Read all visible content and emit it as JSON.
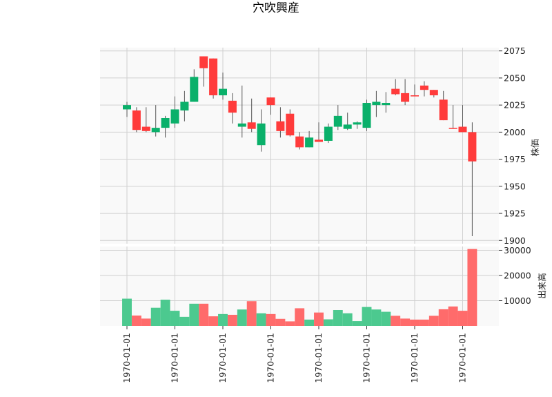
{
  "chart_data": [
    {
      "type": "candlestick",
      "title": "穴吹興産",
      "ylabel": "株価",
      "ylim": [
        1897,
        2078
      ],
      "yticks": [
        1900,
        1925,
        1950,
        1975,
        2000,
        2025,
        2050,
        2075
      ],
      "xtick_labels": [
        "1970-01-01",
        "1970-01-01",
        "1970-01-01",
        "1970-01-01",
        "1970-01-01",
        "1970-01-01",
        "1970-01-01",
        "1970-01-01"
      ],
      "grid": true,
      "colors": {
        "up": "#0ab06a",
        "down": "#ff3b3b",
        "wick": "#555555"
      },
      "candles": [
        {
          "open": 2021,
          "high": 2028,
          "low": 2014,
          "close": 2025
        },
        {
          "open": 2020,
          "high": 2023,
          "low": 2000,
          "close": 2002
        },
        {
          "open": 2005,
          "high": 2023,
          "low": 2000,
          "close": 2001
        },
        {
          "open": 2000,
          "high": 2025,
          "low": 1996,
          "close": 2004
        },
        {
          "open": 2004,
          "high": 2015,
          "low": 1995,
          "close": 2013
        },
        {
          "open": 2008,
          "high": 2033,
          "low": 2004,
          "close": 2021
        },
        {
          "open": 2020,
          "high": 2038,
          "low": 2010,
          "close": 2028
        },
        {
          "open": 2028,
          "high": 2058,
          "low": 2028,
          "close": 2051
        },
        {
          "open": 2070,
          "high": 2070,
          "low": 2042,
          "close": 2059
        },
        {
          "open": 2068,
          "high": 2068,
          "low": 2031,
          "close": 2034
        },
        {
          "open": 2034,
          "high": 2055,
          "low": 2030,
          "close": 2040
        },
        {
          "open": 2029,
          "high": 2036,
          "low": 2008,
          "close": 2018
        },
        {
          "open": 2005,
          "high": 2043,
          "low": 1995,
          "close": 2008
        },
        {
          "open": 2009,
          "high": 2031,
          "low": 2000,
          "close": 2003
        },
        {
          "open": 1988,
          "high": 2021,
          "low": 1982,
          "close": 2008
        },
        {
          "open": 2032,
          "high": 2032,
          "low": 2016,
          "close": 2025
        },
        {
          "open": 2010,
          "high": 2023,
          "low": 1995,
          "close": 2001
        },
        {
          "open": 2017,
          "high": 2021,
          "low": 1996,
          "close": 1997
        },
        {
          "open": 1996,
          "high": 2000,
          "low": 1984,
          "close": 1986
        },
        {
          "open": 1986,
          "high": 2001,
          "low": 1986,
          "close": 1995
        },
        {
          "open": 1993,
          "high": 2009,
          "low": 1991,
          "close": 1991
        },
        {
          "open": 1992,
          "high": 2008,
          "low": 1990,
          "close": 2005
        },
        {
          "open": 2005,
          "high": 2025,
          "low": 2002,
          "close": 2015
        },
        {
          "open": 2003,
          "high": 2018,
          "low": 2002,
          "close": 2007
        },
        {
          "open": 2007,
          "high": 2010,
          "low": 2003,
          "close": 2009
        },
        {
          "open": 2004,
          "high": 2030,
          "low": 2001,
          "close": 2027
        },
        {
          "open": 2025,
          "high": 2038,
          "low": 2014,
          "close": 2028
        },
        {
          "open": 2025,
          "high": 2037,
          "low": 2018,
          "close": 2027
        },
        {
          "open": 2040,
          "high": 2049,
          "low": 2034,
          "close": 2035
        },
        {
          "open": 2036,
          "high": 2049,
          "low": 2025,
          "close": 2028
        },
        {
          "open": 2034,
          "high": 2044,
          "low": 2033,
          "close": 2033
        },
        {
          "open": 2043,
          "high": 2047,
          "low": 2033,
          "close": 2039
        },
        {
          "open": 2039,
          "high": 2039,
          "low": 2032,
          "close": 2034
        },
        {
          "open": 2030,
          "high": 2038,
          "low": 2011,
          "close": 2011
        },
        {
          "open": 2004,
          "high": 2025,
          "low": 2003,
          "close": 2003
        },
        {
          "open": 2005,
          "high": 2025,
          "low": 2000,
          "close": 2000
        },
        {
          "open": 2000,
          "high": 2009,
          "low": 1904,
          "close": 1973
        }
      ]
    },
    {
      "type": "bar",
      "ylabel": "出来高",
      "ylim": [
        0,
        31500
      ],
      "yticks": [
        10000,
        20000,
        30000
      ],
      "grid": true,
      "colors": {
        "up": "#4cc98f",
        "down": "#ff6b6b"
      },
      "values": [
        10800,
        4100,
        2900,
        7200,
        10400,
        6000,
        3600,
        8800,
        8800,
        3800,
        4700,
        4400,
        6500,
        9800,
        5000,
        4700,
        2800,
        1800,
        7000,
        2500,
        5300,
        2600,
        6300,
        5000,
        1900,
        7500,
        6500,
        5600,
        4000,
        2900,
        2500,
        2500,
        4000,
        6600,
        7700,
        6000,
        30500
      ]
    }
  ]
}
